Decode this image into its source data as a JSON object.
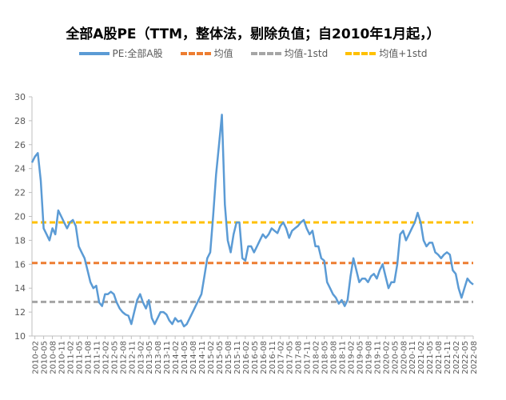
{
  "chart_data": {
    "type": "line",
    "title": "全部A股PE（TTM，整体法，剔除负值；自2010年1月起，）",
    "xlabel": "",
    "ylabel": "",
    "ylim": [
      10,
      30
    ],
    "yticks": [
      10,
      12,
      14,
      16,
      18,
      20,
      22,
      24,
      26,
      28,
      30
    ],
    "start": "2010-01",
    "xtick_labels": [
      "2010-02",
      "2010-05",
      "2010-08",
      "2010-11",
      "2011-02",
      "2011-05",
      "2011-08",
      "2011-11",
      "2012-02",
      "2012-05",
      "2012-08",
      "2012-11",
      "2013-02",
      "2013-05",
      "2013-08",
      "2013-11",
      "2014-02",
      "2014-05",
      "2014-08",
      "2014-11",
      "2015-02",
      "2015-05",
      "2015-08",
      "2015-11",
      "2016-02",
      "2016-05",
      "2016-08",
      "2016-11",
      "2017-02",
      "2017-05",
      "2017-08",
      "2017-11",
      "2018-02",
      "2018-05",
      "2018-08",
      "2018-11",
      "2019-02",
      "2019-05",
      "2019-08",
      "2019-11",
      "2020-02",
      "2020-05",
      "2020-08",
      "2020-11",
      "2021-02",
      "2021-05",
      "2021-08",
      "2021-11",
      "2022-02",
      "2022-05",
      "2022-08"
    ],
    "series": [
      {
        "name": "PE:全部A股",
        "color": "#5B9BD5",
        "style": "solid",
        "values": [
          24.5,
          25,
          25.3,
          23,
          19,
          18.5,
          18,
          19,
          18.5,
          20.5,
          20,
          19.5,
          19,
          19.5,
          19.7,
          19.2,
          17.5,
          17,
          16.5,
          15.5,
          14.5,
          14,
          14.2,
          12.8,
          12.5,
          13.5,
          13.5,
          13.7,
          13.5,
          12.8,
          12.3,
          12,
          11.8,
          11.7,
          11,
          12,
          13,
          13.5,
          12.8,
          12.3,
          13,
          11.5,
          11,
          11.5,
          12,
          12,
          11.8,
          11.3,
          11,
          11.5,
          11.2,
          11.3,
          10.8,
          11,
          11.5,
          12,
          12.5,
          13,
          13.5,
          15,
          16.5,
          17,
          20,
          23.5,
          26,
          28.5,
          21,
          18,
          17,
          18.5,
          19.5,
          19.5,
          16.5,
          16.3,
          17.5,
          17.5,
          17,
          17.5,
          18,
          18.5,
          18.2,
          18.5,
          19,
          18.8,
          18.6,
          19.2,
          19.5,
          19,
          18.2,
          18.8,
          19,
          19.2,
          19.5,
          19.7,
          19,
          18.5,
          18.8,
          17.5,
          17.5,
          16.5,
          16.3,
          14.5,
          14,
          13.5,
          13.2,
          12.7,
          13,
          12.5,
          13,
          15,
          16.5,
          15.5,
          14.5,
          14.8,
          14.8,
          14.5,
          15,
          15.2,
          14.8,
          15.5,
          16,
          15,
          14,
          14.5,
          14.5,
          16,
          18.5,
          18.8,
          18,
          18.5,
          19,
          19.5,
          20.3,
          19.5,
          18,
          17.5,
          17.8,
          17.8,
          17,
          16.8,
          16.5,
          16.8,
          17,
          16.8,
          15.5,
          15.2,
          14,
          13.2,
          14,
          14.8,
          14.5,
          14.3
        ]
      },
      {
        "name": "均值",
        "color": "#ED7D31",
        "style": "dashed",
        "value": 16.1
      },
      {
        "name": "均值-1std",
        "color": "#A5A5A5",
        "style": "dashed",
        "value": 12.85
      },
      {
        "name": "均值+1std",
        "color": "#FFC000",
        "style": "dashed",
        "value": 19.5
      }
    ],
    "legend": "top",
    "grid": false
  }
}
